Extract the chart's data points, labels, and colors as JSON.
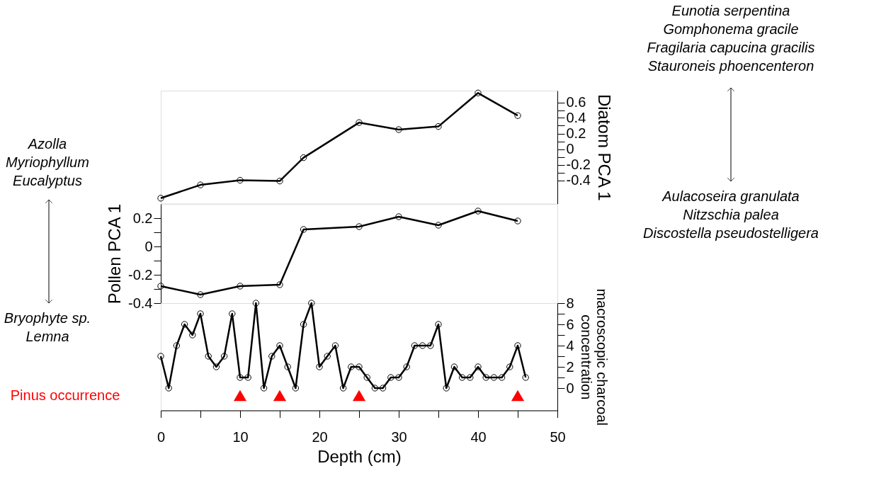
{
  "chart_data": [
    {
      "type": "line",
      "tick_labels": "y",
      "xlim": [
        0,
        50
      ],
      "y2label": "Diatom PCA 1",
      "y2lim": [
        -0.7,
        0.75
      ],
      "y2ticks": [
        -0.4,
        {
          "value": -0.3,
          "label": null
        },
        -0.2,
        {
          "value": -0.1,
          "label": null
        },
        0,
        {
          "value": 0.1,
          "label": null
        },
        0.2,
        {
          "value": 0.3,
          "label": null
        },
        0.4,
        {
          "value": 0.5,
          "label": null
        },
        0.6
      ],
      "series": [
        {
          "type": "line",
          "axis": "y2",
          "color": "#000000",
          "x": [
            0,
            5,
            10,
            15,
            18,
            25,
            30,
            35,
            40,
            45
          ],
          "values": [
            -0.63,
            -0.46,
            -0.4,
            -0.41,
            -0.11,
            0.34,
            0.25,
            0.29,
            0.72,
            0.43
          ]
        }
      ],
      "marker": "circle",
      "line_style": "solid",
      "grid": false,
      "legend": false,
      "annotations": [
        "Eunotia serpentina\nGomphonema gracile\nFragilaria capucina gracilis\nStauroneis phoencenteron",
        "Aulacoseira granulata\nNitzschia palea\nDiscostella pseudostelligera"
      ]
    },
    {
      "type": "line",
      "tick_labels": "y",
      "xlim": [
        0,
        50
      ],
      "ylabel": "Pollen PCA 1",
      "ylim": [
        -0.4,
        0.3
      ],
      "yticks": [
        -0.4,
        {
          "value": -0.3,
          "label": null
        },
        -0.2,
        {
          "value": -0.1,
          "label": null
        },
        0,
        {
          "value": 0.1,
          "label": null
        },
        0.2
      ],
      "series": [
        {
          "type": "line",
          "axis": "y",
          "color": "#000000",
          "x": [
            0,
            5,
            10,
            15,
            18,
            25,
            30,
            35,
            40,
            45
          ],
          "values": [
            -0.28,
            -0.34,
            -0.28,
            -0.27,
            0.12,
            0.14,
            0.21,
            0.15,
            0.25,
            0.18
          ]
        }
      ],
      "marker": "circle",
      "line_style": "solid",
      "grid": false,
      "legend": false,
      "annotations": [
        "Azolla\nMyriophyllum\nEucalyptus",
        "Bryophyte sp.\nLemna"
      ]
    },
    {
      "type": "line",
      "xlabel": "Depth (cm)",
      "xlim": [
        0,
        50
      ],
      "xticks": [
        0,
        {
          "value": 5,
          "label": null
        },
        10,
        {
          "value": 15,
          "label": null
        },
        20,
        {
          "value": 25,
          "label": null
        },
        30,
        {
          "value": 35,
          "label": null
        },
        40,
        {
          "value": 45,
          "label": null
        },
        50
      ],
      "y2label": "macroscopic charcoal concentration",
      "y2lim": [
        -2.1,
        8
      ],
      "y2ticks": [
        0,
        {
          "value": 1,
          "label": null
        },
        2,
        {
          "value": 3,
          "label": null
        },
        4,
        {
          "value": 5,
          "label": null
        },
        6,
        {
          "value": 7,
          "label": null
        },
        8
      ],
      "series": [
        {
          "type": "line",
          "axis": "y2",
          "color": "#000000",
          "x": [
            0,
            1,
            2,
            3,
            4,
            5,
            6,
            7,
            8,
            9,
            10,
            11,
            12,
            13,
            14,
            15,
            16,
            17,
            18,
            19,
            20,
            21,
            22,
            23,
            24,
            25,
            26,
            27,
            28,
            29,
            30,
            31,
            32,
            33,
            34,
            35,
            36,
            37,
            38,
            39,
            40,
            41,
            42,
            43,
            44,
            45,
            46
          ],
          "values": [
            3,
            0,
            4,
            6,
            5,
            7,
            3,
            2,
            3,
            7,
            1,
            1,
            8,
            0,
            3,
            4,
            2,
            0,
            6,
            8,
            2,
            3,
            4,
            0,
            2,
            2,
            1,
            0,
            0,
            1,
            1,
            2,
            4,
            4,
            4,
            6,
            0,
            2,
            1,
            1,
            2,
            1,
            1,
            1,
            2,
            4,
            1
          ]
        },
        {
          "type": "scatter",
          "axis": "y2",
          "name": "Pinus occurrence",
          "color": "#ff0000",
          "marker": "triangle",
          "x": [
            10,
            15,
            25,
            45
          ],
          "values": [
            -0.7,
            -0.7,
            -0.7,
            -0.7
          ]
        }
      ],
      "marker": "circle",
      "line_style": "solid",
      "grid": false,
      "legend": false
    }
  ]
}
